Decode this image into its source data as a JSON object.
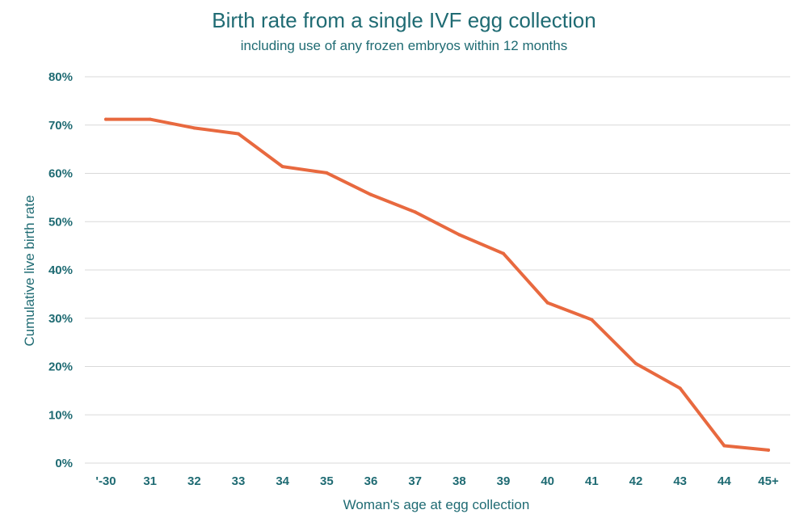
{
  "colors": {
    "text": "#1f6b73",
    "grid": "#d9d9d9",
    "line": "#e8693f"
  },
  "chart_data": {
    "type": "line",
    "title": "Birth rate from a single IVF egg collection",
    "subtitle": "including use of any frozen embryos within 12 months",
    "xlabel": "Woman's age at egg collection",
    "ylabel": "Cumulative live birth rate",
    "categories": [
      "'-30",
      "31",
      "32",
      "33",
      "34",
      "35",
      "36",
      "37",
      "38",
      "39",
      "40",
      "41",
      "42",
      "43",
      "44",
      "45+"
    ],
    "values": [
      71.2,
      71.2,
      69.4,
      68.2,
      61.4,
      60.1,
      55.6,
      52.0,
      47.3,
      43.4,
      33.2,
      29.7,
      20.6,
      15.5,
      3.6,
      2.7
    ],
    "ylim": [
      0,
      80
    ],
    "yticks": [
      0,
      10,
      20,
      30,
      40,
      50,
      60,
      70,
      80
    ],
    "ytick_labels": [
      "0%",
      "10%",
      "20%",
      "30%",
      "40%",
      "50%",
      "60%",
      "70%",
      "80%"
    ],
    "grid": true,
    "legend": "none"
  }
}
